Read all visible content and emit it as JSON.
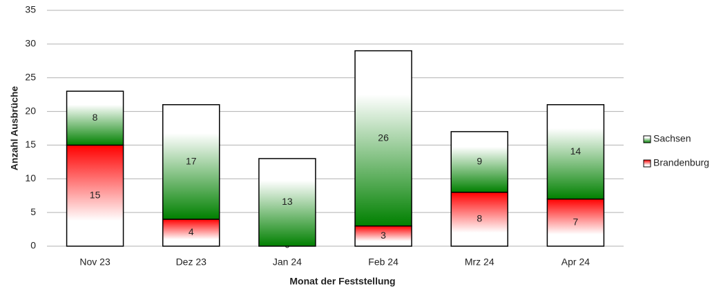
{
  "chart_data": {
    "type": "stacked_bar",
    "x_label": "Monat der Feststellung",
    "y_label": "Anzahl Ausbrüche",
    "categories": [
      "Nov 23",
      "Dez 23",
      "Jan 24",
      "Feb 24",
      "Mrz 24",
      "Apr 24"
    ],
    "series": [
      {
        "name": "Brandenburg",
        "color": "#ff0000",
        "values": [
          15,
          4,
          0,
          3,
          8,
          7
        ]
      },
      {
        "name": "Sachsen",
        "color": "#008000",
        "values": [
          8,
          17,
          13,
          26,
          9,
          14
        ]
      }
    ],
    "ylim": [
      0,
      35
    ],
    "yticks": [
      0,
      5,
      10,
      15,
      20,
      25,
      30,
      35
    ],
    "grid": true,
    "legend": "right"
  }
}
